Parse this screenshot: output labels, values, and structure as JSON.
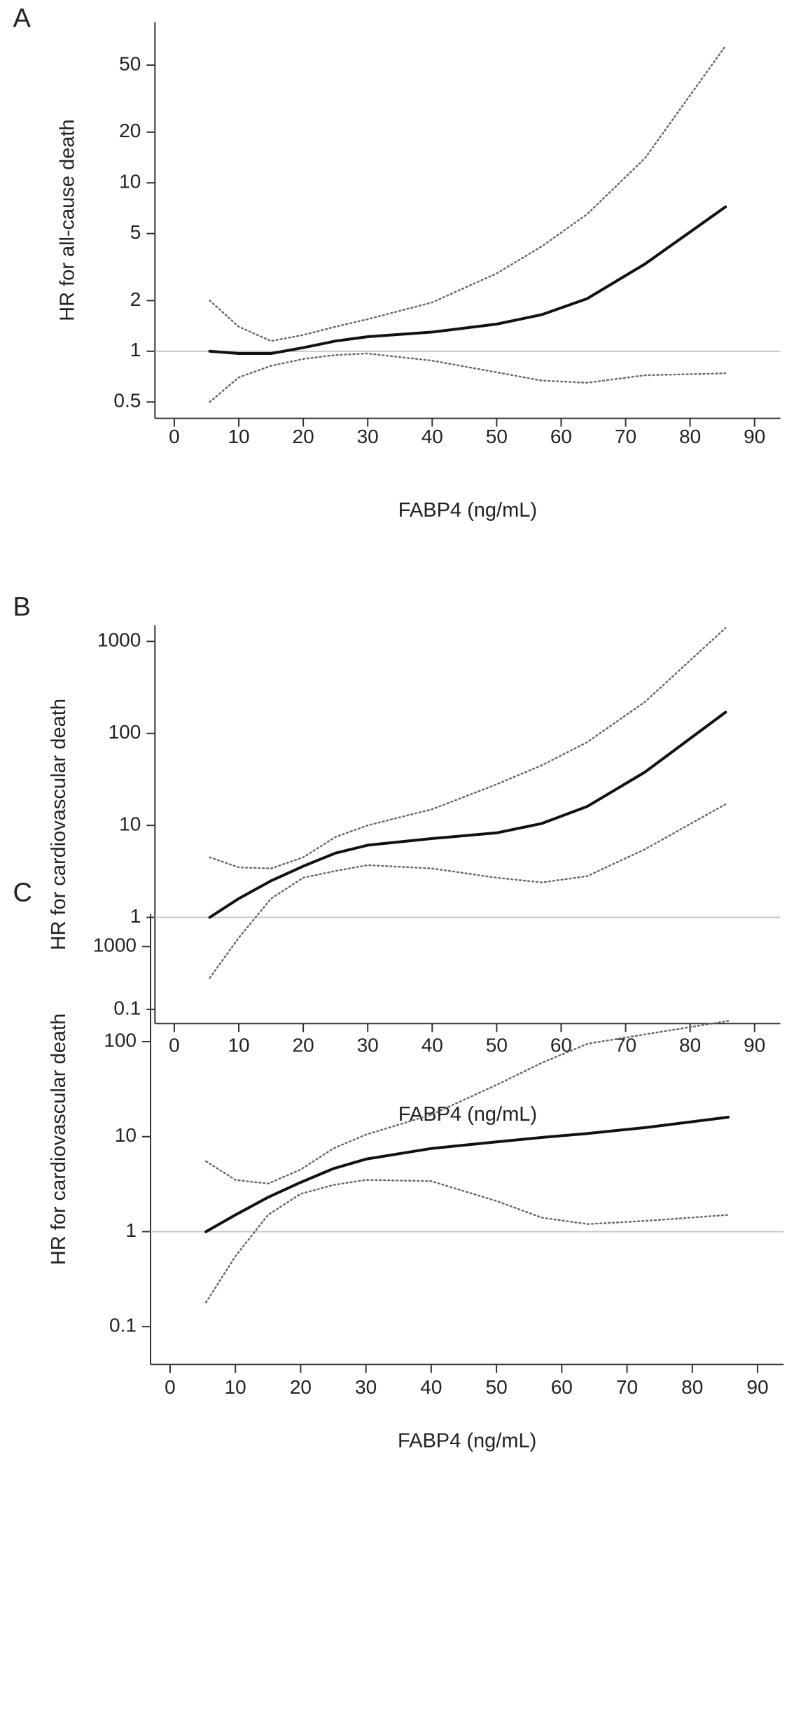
{
  "chart_data": [
    {
      "type": "line",
      "panel": "A",
      "x_label": "FABP4 (ng/mL)",
      "y_label": "HR for all-cause death",
      "log_y": true,
      "xlim": [
        -3,
        94
      ],
      "ylim": [
        0.4,
        90
      ],
      "xticks": [
        0,
        10,
        20,
        30,
        40,
        50,
        60,
        70,
        80,
        90
      ],
      "yticks": [
        0.5,
        1,
        2,
        5,
        10,
        20,
        50
      ],
      "reference_line": 1,
      "reference_color": "#c8c8c8",
      "x": [
        5.5,
        10,
        15,
        20,
        25,
        30,
        40,
        50,
        57,
        64,
        73,
        85.5
      ],
      "series": [
        {
          "color": "#111111",
          "style": "solid",
          "values": [
            1.0,
            0.97,
            0.97,
            1.05,
            1.15,
            1.22,
            1.3,
            1.45,
            1.65,
            2.05,
            3.3,
            7.2
          ]
        },
        {
          "color": "#666666",
          "style": "dotted",
          "values": [
            2.0,
            1.4,
            1.15,
            1.25,
            1.4,
            1.55,
            1.95,
            2.9,
            4.2,
            6.5,
            14,
            65
          ]
        },
        {
          "color": "#666666",
          "style": "dotted",
          "values": [
            0.5,
            0.7,
            0.82,
            0.9,
            0.95,
            0.97,
            0.88,
            0.75,
            0.67,
            0.65,
            0.72,
            0.74
          ]
        }
      ]
    },
    {
      "type": "line",
      "panel": "B",
      "x_label": "FABP4 (ng/mL)",
      "y_label": "HR for cardiovascular death",
      "log_y": true,
      "xlim": [
        -3,
        94
      ],
      "ylim": [
        0.07,
        1500
      ],
      "xticks": [
        0,
        10,
        20,
        30,
        40,
        50,
        60,
        70,
        80,
        90
      ],
      "yticks": [
        0.1,
        1,
        10,
        100,
        1000
      ],
      "reference_line": 1,
      "reference_color": "#c8c8c8",
      "x": [
        5.5,
        10,
        15,
        20,
        25,
        30,
        40,
        50,
        57,
        64,
        73,
        85.5
      ],
      "series": [
        {
          "color": "#111111",
          "style": "solid",
          "values": [
            1.0,
            1.6,
            2.5,
            3.6,
            5.0,
            6.1,
            7.2,
            8.3,
            10.5,
            16,
            38,
            170
          ]
        },
        {
          "color": "#666666",
          "style": "dotted",
          "values": [
            4.5,
            3.5,
            3.4,
            4.5,
            7.5,
            10,
            15,
            28,
            45,
            80,
            220,
            1400
          ]
        },
        {
          "color": "#666666",
          "style": "dotted",
          "values": [
            0.22,
            0.6,
            1.6,
            2.7,
            3.2,
            3.7,
            3.4,
            2.7,
            2.4,
            2.8,
            5.5,
            17
          ]
        }
      ]
    },
    {
      "type": "line",
      "panel": "C",
      "x_label": "FABP4 (ng/mL)",
      "y_label": "HR for cardiovascular death",
      "log_y": true,
      "xlim": [
        -3,
        94
      ],
      "ylim": [
        0.04,
        2200
      ],
      "xticks": [
        0,
        10,
        20,
        30,
        40,
        50,
        60,
        70,
        80,
        90
      ],
      "yticks": [
        0.1,
        1,
        10,
        100,
        1000
      ],
      "reference_line": 1,
      "reference_color": "#c8c8c8",
      "x": [
        5.5,
        10,
        15,
        20,
        25,
        30,
        40,
        50,
        57,
        64,
        73,
        85.5
      ],
      "series": [
        {
          "color": "#111111",
          "style": "solid",
          "values": [
            1.0,
            1.5,
            2.3,
            3.3,
            4.6,
            5.8,
            7.5,
            8.8,
            9.8,
            10.8,
            12.5,
            16
          ]
        },
        {
          "color": "#666666",
          "style": "dotted",
          "values": [
            5.5,
            3.5,
            3.2,
            4.5,
            7.5,
            10.5,
            17,
            35,
            60,
            95,
            120,
            165
          ]
        },
        {
          "color": "#666666",
          "style": "dotted",
          "values": [
            0.18,
            0.55,
            1.5,
            2.5,
            3.1,
            3.5,
            3.4,
            2.1,
            1.4,
            1.2,
            1.3,
            1.5
          ]
        }
      ]
    }
  ]
}
